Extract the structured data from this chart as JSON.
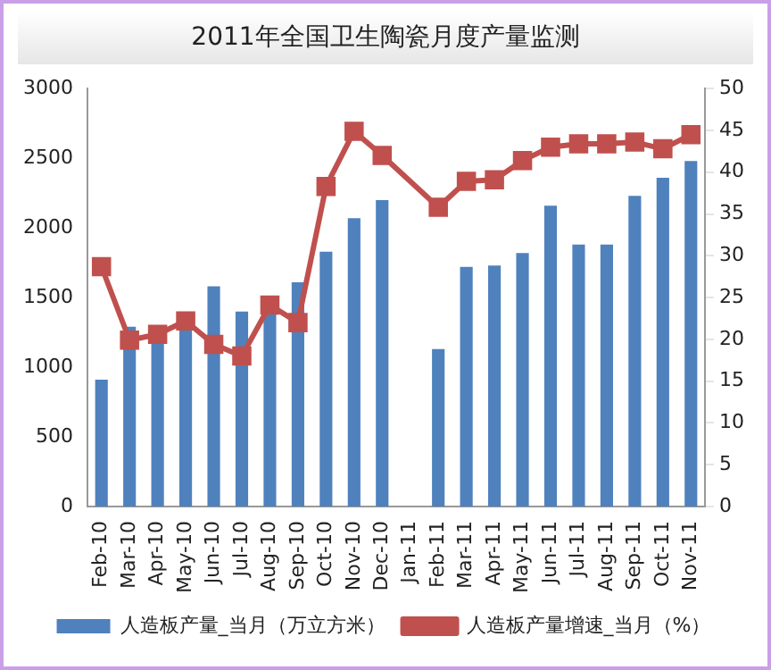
{
  "chart_data": {
    "type": "bar",
    "title": "2011年全国卫生陶瓷月度产量监测",
    "categories": [
      "Feb-10",
      "Mar-10",
      "Apr-10",
      "May-10",
      "Jun-10",
      "Jul-10",
      "Aug-10",
      "Sep-10",
      "Oct-10",
      "Nov-10",
      "Dec-10",
      "Jan-11",
      "Feb-11",
      "Mar-11",
      "Apr-11",
      "May-11",
      "Jun-11",
      "Jul-11",
      "Aug-11",
      "Sep-11",
      "Oct-11",
      "Nov-11"
    ],
    "series": [
      {
        "name": "人造板产量_当月（万立方米）",
        "color": "#4f81bd",
        "values": [
          910,
          1290,
          1200,
          1300,
          1580,
          1400,
          1400,
          1610,
          1830,
          2070,
          2200,
          null,
          1130,
          1720,
          1730,
          1820,
          2160,
          1880,
          1880,
          2230,
          2360,
          2480
        ]
      },
      {
        "name": "人造板产量增速_当月（%）",
        "type": "line",
        "axis": "y2",
        "color": "#c0504d",
        "marker": "square",
        "values": [
          28.7,
          19.9,
          20.6,
          22.2,
          19.4,
          18.0,
          24.1,
          22.0,
          38.3,
          44.9,
          42.0,
          null,
          35.8,
          38.9,
          39.1,
          41.4,
          43.0,
          43.4,
          43.4,
          43.6,
          42.8,
          44.5
        ]
      }
    ],
    "ylim": [
      0,
      3000
    ],
    "yticks": [
      0,
      500,
      1000,
      1500,
      2000,
      2500,
      3000
    ],
    "y2lim": [
      0,
      50
    ],
    "y2ticks": [
      0,
      5,
      10,
      15,
      20,
      25,
      30,
      35,
      40,
      45,
      50
    ],
    "grid": false,
    "legend": "bottom"
  }
}
